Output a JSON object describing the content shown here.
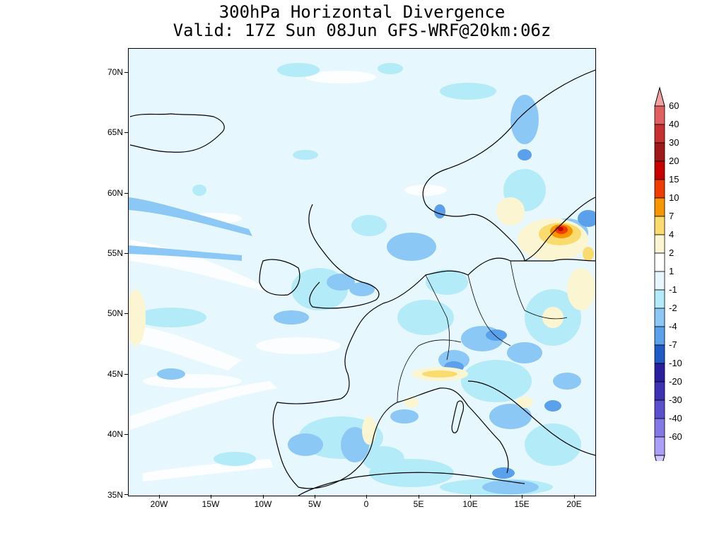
{
  "title": {
    "line1": "300hPa Horizontal Divergence",
    "line2": "Valid: 17Z Sun 08Jun GFS-WRF@20km:06z"
  },
  "map": {
    "lat_range": [
      35,
      72
    ],
    "lon_range": [
      -23,
      22
    ],
    "lat_ticks": [
      "70N",
      "65N",
      "60N",
      "55N",
      "50N",
      "45N",
      "40N",
      "35N"
    ],
    "lon_ticks": [
      "20W",
      "15W",
      "10W",
      "5W",
      "0",
      "5E",
      "10E",
      "15E",
      "20E"
    ]
  },
  "colorbar": {
    "labels": [
      "60",
      "40",
      "30",
      "20",
      "15",
      "10",
      "7",
      "4",
      "2",
      "1",
      "-1",
      "-2",
      "-4",
      "-7",
      "-10",
      "-20",
      "-30",
      "-40",
      "-60"
    ],
    "colors": [
      "#f4a0a0",
      "#e06060",
      "#c83030",
      "#a01818",
      "#c80000",
      "#f03c00",
      "#f89600",
      "#fadc6e",
      "#fcf5d2",
      "#ffffff",
      "#e6f7fd",
      "#b4ebf8",
      "#8cc8f5",
      "#5aa0eb",
      "#1e5ac8",
      "#281ea0",
      "#3c32b4",
      "#5a50cd",
      "#8278e6",
      "#aaa0fa",
      "#d2c8ff"
    ]
  }
}
